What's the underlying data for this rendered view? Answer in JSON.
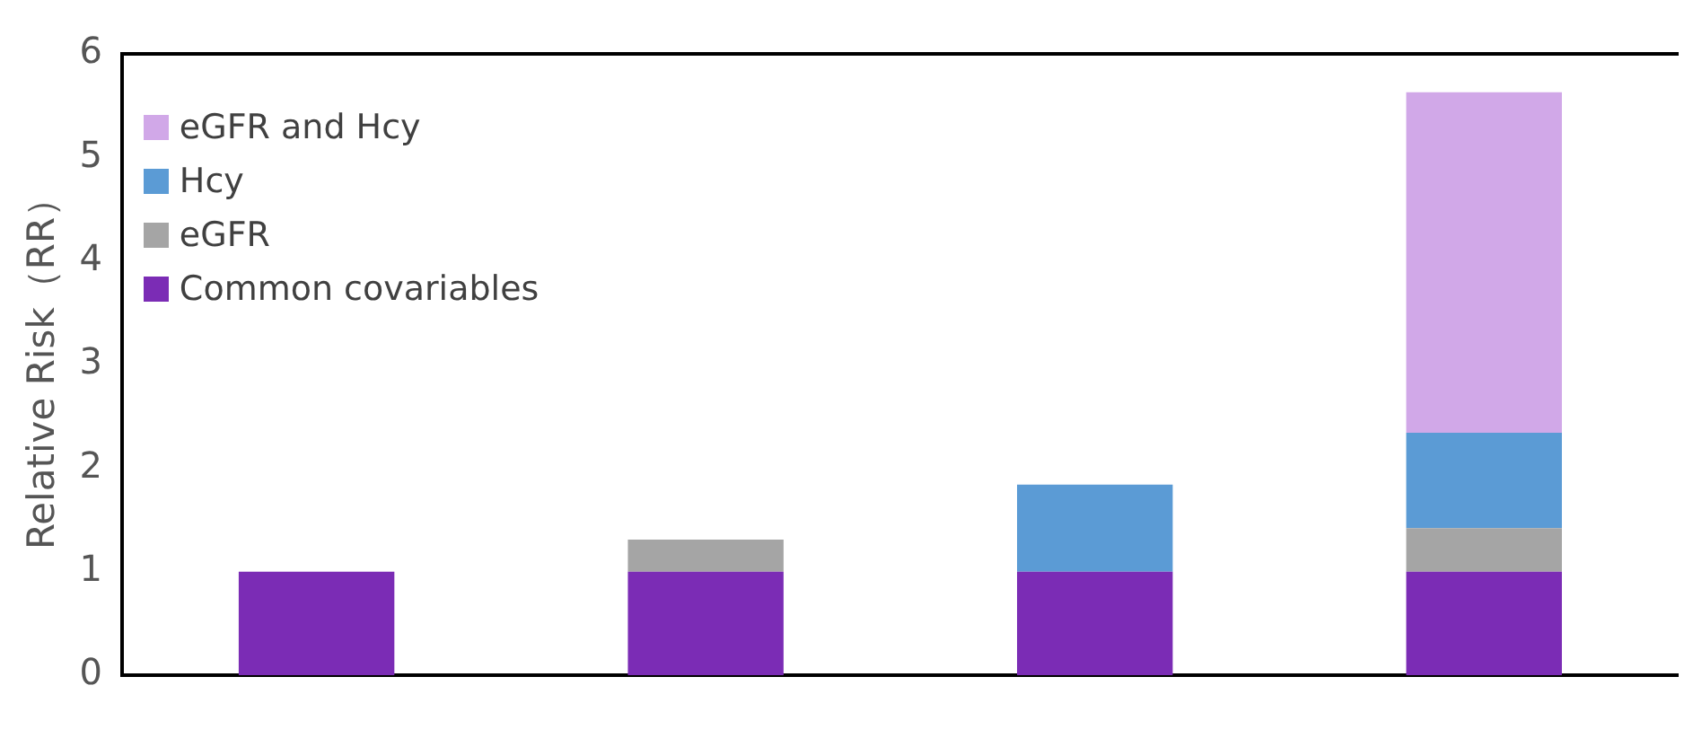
{
  "chart_data": {
    "type": "bar",
    "stacked": true,
    "ylabel": "Relative Risk（RR）",
    "categories": [
      null,
      null,
      null,
      null
    ],
    "series": [
      {
        "name": "Common covariables",
        "color": "#7b2cb5",
        "values": [
          1,
          1,
          1,
          1
        ]
      },
      {
        "name": "eGFR",
        "color": "#a5a5a5",
        "values": [
          null,
          0.31,
          null,
          0.42
        ]
      },
      {
        "name": "Hcy",
        "color": "#5b9bd5",
        "values": [
          null,
          null,
          0.84,
          0.92
        ]
      },
      {
        "name": "eGFR and Hcy",
        "color": "#d1a8e8",
        "values": [
          null,
          null,
          null,
          3.29
        ]
      }
    ],
    "ylim": [
      0,
      6
    ],
    "yticks": [
      0,
      1,
      2,
      3,
      4,
      5,
      6
    ],
    "grid": false,
    "legend": "top left"
  }
}
